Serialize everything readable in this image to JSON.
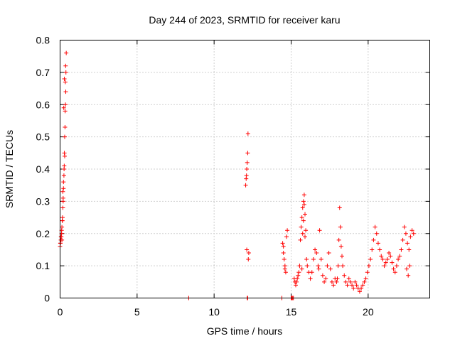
{
  "chart_data": {
    "type": "scatter",
    "title": "Day 244 of 2023, SRMTID for receiver karu",
    "xlabel": "GPS time / hours",
    "ylabel": "SRMTID / TECUs",
    "xlim": [
      0,
      24
    ],
    "ylim": [
      0,
      0.8
    ],
    "grid": true,
    "marker": "+",
    "color": "#ff0000",
    "xticks": [
      0,
      5,
      10,
      15,
      20
    ],
    "xtick_labels": [
      "0",
      "5",
      "10",
      "15",
      "20"
    ],
    "yticks": [
      0,
      0.1,
      0.2,
      0.3,
      0.4,
      0.5,
      0.6,
      0.7,
      0.8
    ],
    "ytick_labels": [
      "0",
      "0.1",
      "0.2",
      "0.3",
      "0.4",
      "0.5",
      "0.6",
      "0.7",
      "0.8"
    ],
    "series": [
      {
        "name": "SRMTID",
        "x": [
          0.0,
          0.02,
          0.05,
          0.08,
          0.1,
          0.12,
          0.15,
          0.18,
          0.2,
          0.22,
          0.25,
          0.27,
          0.28,
          0.3,
          0.32,
          0.33,
          0.35,
          0.37,
          0.38,
          0.4,
          0.02,
          0.06,
          0.1,
          0.14,
          0.18,
          0.22,
          0.26,
          0.3,
          0.12,
          0.16,
          0.24,
          0.34,
          0.2,
          0.28,
          0.36,
          8.35,
          12.05,
          12.08,
          12.1,
          12.12,
          12.15,
          12.18,
          12.2,
          12.22,
          12.25,
          12.12,
          12.15,
          12.18,
          14.4,
          14.45,
          14.5,
          14.55,
          14.6,
          14.65,
          14.7,
          14.75,
          14.5,
          14.6,
          15.0,
          15.05,
          15.1,
          15.15,
          15.2,
          15.25,
          15.3,
          15.35,
          15.4,
          15.45,
          15.5,
          15.55,
          15.6,
          15.65,
          15.7,
          15.75,
          15.8,
          15.85,
          15.9,
          15.95,
          16.0,
          15.7,
          15.75,
          15.8,
          15.85,
          15.9,
          16.05,
          16.15,
          16.25,
          16.35,
          16.45,
          16.55,
          16.65,
          16.75,
          16.8,
          16.85,
          16.95,
          17.05,
          17.15,
          17.25,
          17.35,
          17.45,
          17.55,
          17.65,
          17.75,
          17.85,
          17.95,
          18.0,
          18.05,
          18.1,
          18.15,
          18.2,
          18.25,
          18.3,
          18.35,
          18.45,
          18.55,
          18.65,
          18.75,
          18.85,
          18.95,
          19.05,
          19.15,
          19.25,
          19.35,
          19.45,
          19.55,
          19.65,
          19.75,
          19.85,
          19.95,
          20.05,
          20.15,
          20.25,
          20.35,
          20.45,
          20.55,
          20.65,
          20.75,
          20.85,
          20.95,
          21.05,
          21.15,
          21.25,
          21.35,
          21.45,
          21.55,
          21.65,
          21.75,
          21.85,
          21.95,
          22.05,
          22.15,
          22.25,
          22.35,
          22.45,
          22.55,
          22.65,
          22.75,
          22.85,
          22.95,
          22.5,
          22.6,
          22.7
        ],
        "y": [
          0.16,
          0.17,
          0.18,
          0.19,
          0.2,
          0.22,
          0.24,
          0.28,
          0.31,
          0.34,
          0.38,
          0.41,
          0.45,
          0.5,
          0.53,
          0.58,
          0.6,
          0.64,
          0.7,
          0.76,
          0.17,
          0.19,
          0.21,
          0.24,
          0.33,
          0.36,
          0.4,
          0.44,
          0.18,
          0.25,
          0.59,
          0.67,
          0.3,
          0.68,
          0.72,
          0.0,
          0.35,
          0.37,
          0.38,
          0.4,
          0.42,
          0.45,
          0.51,
          0.12,
          0.14,
          0.15,
          0.0,
          0.0,
          0.0,
          0.17,
          0.14,
          0.12,
          0.1,
          0.08,
          0.19,
          0.21,
          0.16,
          0.09,
          0.0,
          0.0,
          0.0,
          0.0,
          0.06,
          0.05,
          0.04,
          0.05,
          0.06,
          0.07,
          0.08,
          0.1,
          0.18,
          0.22,
          0.25,
          0.28,
          0.3,
          0.32,
          0.26,
          0.21,
          0.12,
          0.09,
          0.2,
          0.24,
          0.29,
          0.19,
          0.1,
          0.08,
          0.06,
          0.08,
          0.12,
          0.15,
          0.14,
          0.1,
          0.09,
          0.21,
          0.12,
          0.07,
          0.05,
          0.06,
          0.1,
          0.14,
          0.09,
          0.05,
          0.04,
          0.06,
          0.05,
          0.06,
          0.1,
          0.18,
          0.28,
          0.22,
          0.16,
          0.13,
          0.1,
          0.07,
          0.05,
          0.04,
          0.06,
          0.05,
          0.04,
          0.03,
          0.05,
          0.04,
          0.03,
          0.02,
          0.03,
          0.04,
          0.05,
          0.06,
          0.08,
          0.1,
          0.12,
          0.15,
          0.18,
          0.22,
          0.2,
          0.17,
          0.15,
          0.13,
          0.12,
          0.1,
          0.11,
          0.12,
          0.14,
          0.13,
          0.11,
          0.09,
          0.08,
          0.1,
          0.12,
          0.13,
          0.15,
          0.18,
          0.22,
          0.2,
          0.17,
          0.15,
          0.19,
          0.21,
          0.2,
          0.09,
          0.07,
          0.1
        ]
      }
    ]
  }
}
